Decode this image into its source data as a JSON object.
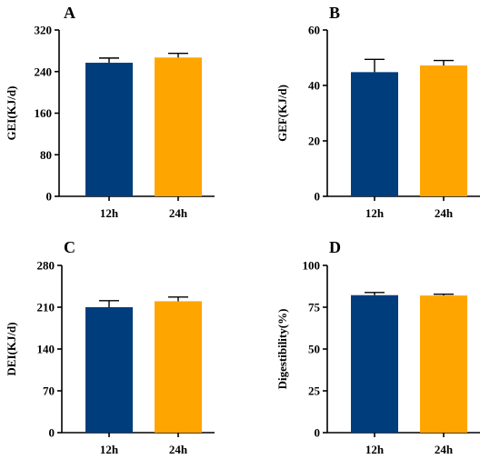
{
  "colors": {
    "series_12h": "#003D7C",
    "series_24h": "#FFA500",
    "axis": "#000000"
  },
  "chart_data": [
    {
      "type": "bar",
      "panel": "A",
      "ylabel": "GEI(KJ/d)",
      "ylim": [
        0,
        320
      ],
      "yticks": [
        0,
        80,
        160,
        240,
        320
      ],
      "categories": [
        "12h",
        "24h"
      ],
      "values": [
        257,
        267
      ],
      "error": [
        9,
        8
      ],
      "grid": false
    },
    {
      "type": "bar",
      "panel": "B",
      "ylabel": "GEF(KJ/d)",
      "ylim": [
        0,
        60
      ],
      "yticks": [
        0,
        20,
        40,
        60
      ],
      "categories": [
        "12h",
        "24h"
      ],
      "values": [
        44.8,
        47.2
      ],
      "error": [
        4.6,
        1.8
      ],
      "grid": false
    },
    {
      "type": "bar",
      "panel": "C",
      "ylabel": "DEI(KJ/d)",
      "ylim": [
        0,
        280
      ],
      "yticks": [
        0,
        70,
        140,
        210,
        280
      ],
      "categories": [
        "12h",
        "24h"
      ],
      "values": [
        210,
        220
      ],
      "error": [
        11,
        7
      ],
      "grid": false
    },
    {
      "type": "bar",
      "panel": "D",
      "ylabel": "Digestibility(%)",
      "ylim": [
        0,
        100
      ],
      "yticks": [
        0,
        25,
        50,
        75,
        100
      ],
      "categories": [
        "12h",
        "24h"
      ],
      "values": [
        82.2,
        82.0
      ],
      "error": [
        1.6,
        0.8
      ],
      "grid": false
    }
  ]
}
